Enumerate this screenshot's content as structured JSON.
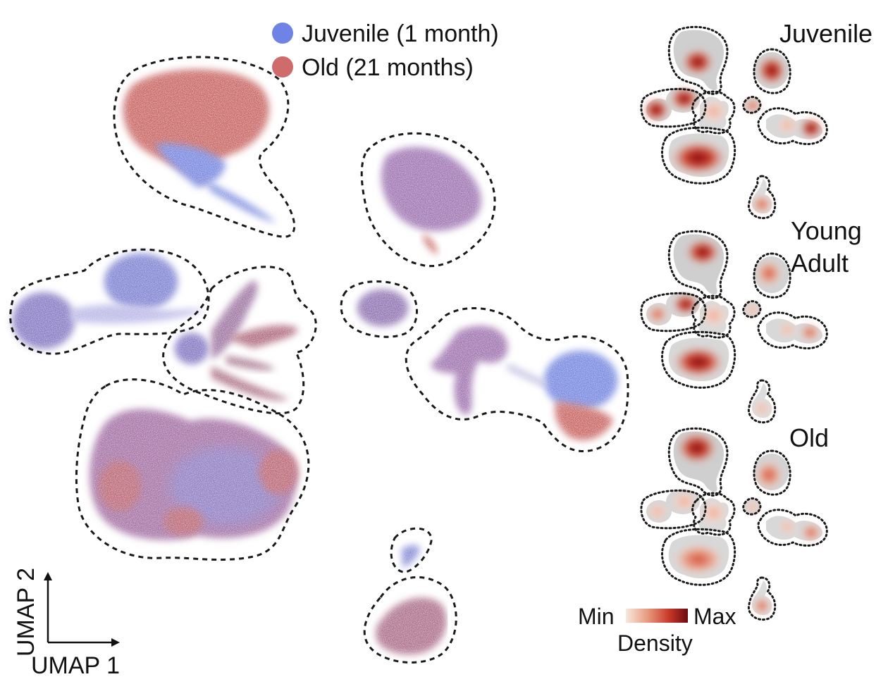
{
  "legend": {
    "items": [
      {
        "label": "Juvenile (1 month)",
        "color": "#6f82e6"
      },
      {
        "label": "Old (21 months)",
        "color": "#d06b6b"
      }
    ]
  },
  "axes": {
    "x_label": "UMAP 1",
    "y_label": "UMAP 2"
  },
  "panels": [
    {
      "label": "Juvenile"
    },
    {
      "label_line1": "Young",
      "label_line2": "Adult"
    },
    {
      "label": "Old"
    }
  ],
  "colorbar": {
    "min_label": "Min",
    "max_label": "Max",
    "title": "Density",
    "colors": [
      "#f8e8dc",
      "#e89a80",
      "#c83828",
      "#6a0a10"
    ]
  }
}
